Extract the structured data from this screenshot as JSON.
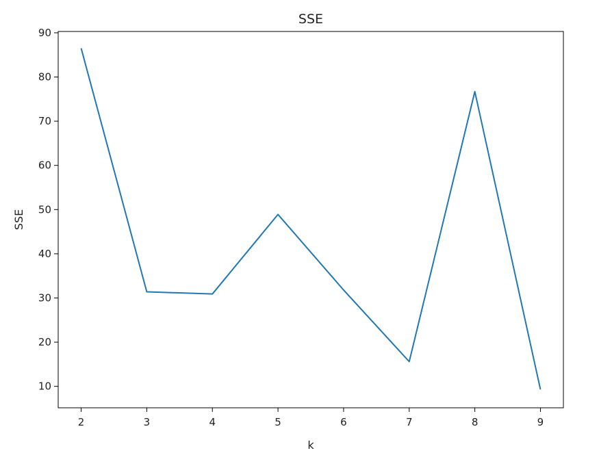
{
  "chart_data": {
    "type": "line",
    "title": "SSE",
    "xlabel": "k",
    "ylabel": "SSE",
    "x": [
      2,
      3,
      4,
      5,
      6,
      7,
      8,
      9
    ],
    "series": [
      {
        "values": [
          86.5,
          31.4,
          30.9,
          48.9,
          31.8,
          15.6,
          76.7,
          9.3
        ],
        "color": "#1f77b4"
      }
    ],
    "xticks": [
      "2",
      "3",
      "4",
      "5",
      "6",
      "7",
      "8",
      "9"
    ],
    "yticks": [
      "10",
      "20",
      "30",
      "40",
      "50",
      "60",
      "70",
      "80",
      "90"
    ],
    "xlim": [
      1.65,
      9.35
    ],
    "ylim": [
      5.15,
      90.3
    ],
    "grid": false
  }
}
